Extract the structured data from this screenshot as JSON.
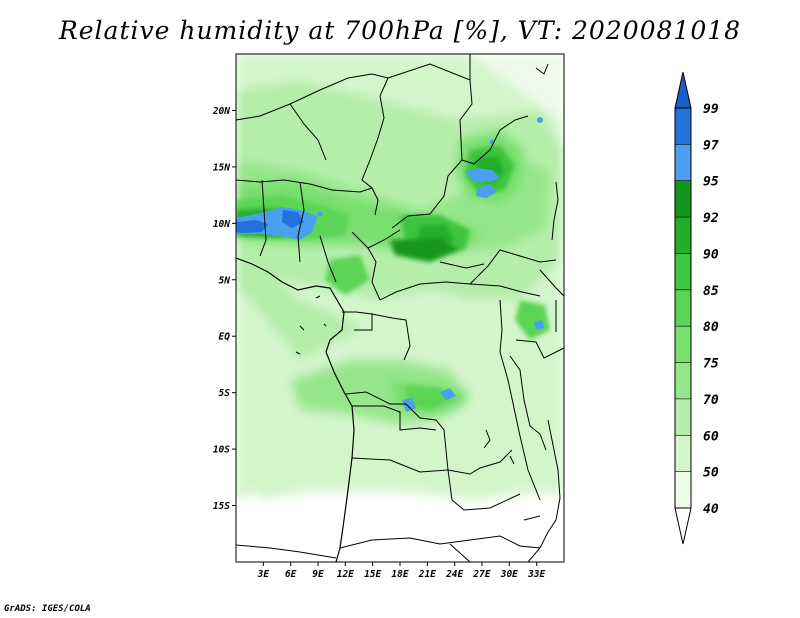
{
  "title": "Relative humidity at 700hPa [%], VT: 2020081018",
  "credit": "GrADS: IGES/COLA",
  "map": {
    "lon_range": [
      0,
      36
    ],
    "lat_range": [
      -20,
      25
    ],
    "lon_ticks": [
      {
        "value": 3,
        "label": "3E"
      },
      {
        "value": 6,
        "label": "6E"
      },
      {
        "value": 9,
        "label": "9E"
      },
      {
        "value": 12,
        "label": "12E"
      },
      {
        "value": 15,
        "label": "15E"
      },
      {
        "value": 18,
        "label": "18E"
      },
      {
        "value": 21,
        "label": "21E"
      },
      {
        "value": 24,
        "label": "24E"
      },
      {
        "value": 27,
        "label": "27E"
      },
      {
        "value": 30,
        "label": "30E"
      },
      {
        "value": 33,
        "label": "33E"
      }
    ],
    "lat_ticks": [
      {
        "value": 20,
        "label": "20N"
      },
      {
        "value": 15,
        "label": "15N"
      },
      {
        "value": 10,
        "label": "10N"
      },
      {
        "value": 5,
        "label": "5N"
      },
      {
        "value": 0,
        "label": "EQ"
      },
      {
        "value": -5,
        "label": "5S"
      },
      {
        "value": -10,
        "label": "10S"
      },
      {
        "value": -15,
        "label": "15S"
      }
    ]
  },
  "colorbar": {
    "levels": [
      {
        "value": "40",
        "color": "#eefbea"
      },
      {
        "value": "50",
        "color": "#d4f5cc"
      },
      {
        "value": "60",
        "color": "#b5eeaa"
      },
      {
        "value": "70",
        "color": "#96e68b"
      },
      {
        "value": "75",
        "color": "#79df6e"
      },
      {
        "value": "80",
        "color": "#5bd455"
      },
      {
        "value": "85",
        "color": "#3ec43e"
      },
      {
        "value": "90",
        "color": "#24ad2a"
      },
      {
        "value": "92",
        "color": "#14961e"
      },
      {
        "value": "95",
        "color": "#4aa0ee"
      },
      {
        "value": "97",
        "color": "#2372dc"
      },
      {
        "value": "99",
        "color": ""
      }
    ],
    "below_color": "#ffffff",
    "top_color": "#1a5ec8"
  }
}
